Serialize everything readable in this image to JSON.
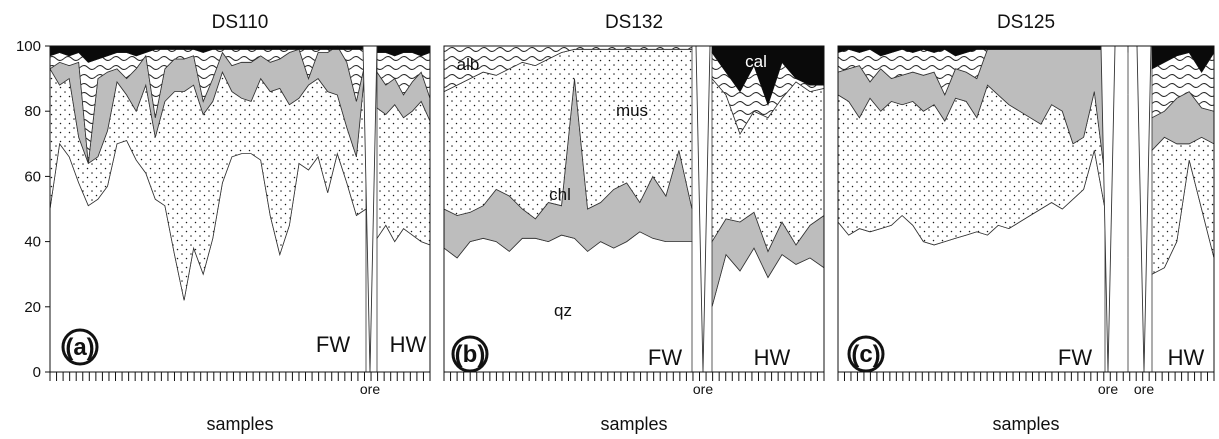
{
  "figure": {
    "xlabel": "samples",
    "y_ticks": [
      "0",
      "20",
      "40",
      "60",
      "80",
      "100"
    ]
  },
  "chart_data": [
    {
      "type": "area",
      "stacked": true,
      "title": "DS110",
      "panel_label": "(a)",
      "xlabel": "samples",
      "ylim": [
        0,
        100
      ],
      "y_ticks": [
        0,
        20,
        40,
        60,
        80,
        100
      ],
      "zone_labels": [
        "FW",
        "HW"
      ],
      "ore_label": "ore",
      "mineral_labels": [],
      "segments": [
        {
          "zone": "FW",
          "boundaries": [
            {
              "name": "qz",
              "values": [
                50,
                70,
                66,
                58,
                51,
                53,
                57,
                70,
                71,
                65,
                61,
                53,
                51,
                36,
                22,
                38,
                30,
                41,
                58,
                66,
                67,
                67,
                65,
                48,
                36,
                45,
                64,
                62,
                66,
                55,
                67,
                58,
                48,
                50
              ]
            },
            {
              "name": "mus",
              "values": [
                93,
                88,
                90,
                72,
                64,
                66,
                74,
                89,
                85,
                80,
                88,
                72,
                83,
                86,
                86,
                88,
                79,
                83,
                92,
                86,
                84,
                83,
                90,
                86,
                87,
                82,
                84,
                88,
                90,
                86,
                85,
                75,
                66,
                96
              ]
            },
            {
              "name": "chl",
              "values": [
                93,
                95,
                94,
                95,
                64,
                90,
                92,
                93,
                90,
                93,
                97,
                78,
                93,
                96,
                96,
                97,
                83,
                90,
                98,
                94,
                95,
                95,
                97,
                95,
                96,
                98,
                99,
                90,
                98,
                98,
                100,
                95,
                83,
                96
              ]
            },
            {
              "name": "cal",
              "values": [
                97,
                98,
                97,
                98,
                95,
                96,
                97,
                98,
                98,
                97,
                98,
                99,
                99,
                99,
                99,
                99,
                98,
                99,
                99,
                99,
                99,
                99,
                99,
                99,
                99,
                99,
                99,
                99,
                99,
                99,
                99,
                99,
                99,
                99
              ]
            }
          ]
        },
        {
          "zone": "HW",
          "boundaries": [
            {
              "name": "qz",
              "values": [
                41,
                45,
                40,
                44,
                42,
                40,
                39
              ]
            },
            {
              "name": "mus",
              "values": [
                81,
                79,
                82,
                78,
                80,
                83,
                77
              ]
            },
            {
              "name": "chl",
              "values": [
                92,
                88,
                90,
                85,
                89,
                92,
                84
              ]
            },
            {
              "name": "cal",
              "values": [
                98,
                98,
                97,
                98,
                98,
                97,
                98
              ]
            }
          ]
        }
      ]
    },
    {
      "type": "area",
      "stacked": true,
      "title": "DS132",
      "panel_label": "(b)",
      "xlabel": "samples",
      "ylim": [
        0,
        100
      ],
      "y_ticks": [
        0,
        20,
        40,
        60,
        80,
        100
      ],
      "zone_labels": [
        "FW",
        "HW"
      ],
      "ore_label": "ore",
      "mineral_labels": [
        "alb",
        "mus",
        "chl",
        "qz",
        "cal"
      ],
      "segments": [
        {
          "zone": "FW",
          "boundaries": [
            {
              "name": "qz",
              "values": [
                38,
                35,
                40,
                41,
                40,
                37,
                41,
                41,
                40,
                42,
                41,
                37,
                40,
                38,
                40,
                43,
                41,
                40,
                40,
                40
              ]
            },
            {
              "name": "mus",
              "values": [
                50,
                48,
                49,
                51,
                56,
                54,
                50,
                47,
                52,
                51,
                90,
                50,
                52,
                56,
                58,
                52,
                60,
                54,
                68,
                50
              ]
            },
            {
              "name": "alb",
              "values": [
                86,
                88,
                90,
                92,
                91,
                93,
                95,
                94,
                96,
                98,
                99,
                99,
                99,
                99,
                99,
                99,
                99,
                99,
                99,
                99
              ]
            },
            {
              "name": "top",
              "values": [
                100,
                100,
                100,
                100,
                100,
                100,
                100,
                100,
                100,
                100,
                100,
                100,
                100,
                100,
                100,
                100,
                100,
                100,
                100,
                100
              ]
            }
          ]
        },
        {
          "zone": "HW",
          "boundaries": [
            {
              "name": "qz",
              "values": [
                20,
                36,
                31,
                38,
                29,
                36,
                33,
                35,
                32
              ]
            },
            {
              "name": "mus",
              "values": [
                40,
                47,
                46,
                49,
                37,
                46,
                39,
                45,
                48
              ]
            },
            {
              "name": "chl",
              "values": [
                90,
                85,
                73,
                80,
                78,
                84,
                89,
                86,
                87
              ]
            },
            {
              "name": "cal",
              "values": [
                98,
                92,
                86,
                94,
                82,
                95,
                90,
                88,
                88
              ]
            }
          ]
        }
      ]
    },
    {
      "type": "area",
      "stacked": true,
      "title": "DS125",
      "panel_label": "(c)",
      "xlabel": "samples",
      "ylim": [
        0,
        100
      ],
      "y_ticks": [
        0,
        20,
        40,
        60,
        80,
        100
      ],
      "zone_labels": [
        "FW",
        "HW"
      ],
      "ore_label": "ore",
      "mineral_labels": [],
      "segments": [
        {
          "zone": "FW",
          "boundaries": [
            {
              "name": "qz",
              "values": [
                46,
                42,
                44,
                43,
                44,
                45,
                48,
                45,
                40,
                39,
                40,
                41,
                42,
                43,
                42,
                45,
                44,
                46,
                48,
                50,
                52,
                50,
                53,
                56,
                68,
                50
              ]
            },
            {
              "name": "mus",
              "values": [
                85,
                83,
                78,
                84,
                80,
                83,
                82,
                83,
                80,
                82,
                77,
                84,
                83,
                78,
                88,
                85,
                82,
                80,
                78,
                76,
                82,
                80,
                70,
                72,
                86,
                60
              ]
            },
            {
              "name": "chl",
              "values": [
                92,
                93,
                94,
                89,
                93,
                90,
                91,
                92,
                91,
                92,
                85,
                93,
                92,
                90,
                99,
                99,
                99,
                99,
                99,
                99,
                99,
                99,
                99,
                99,
                99,
                99
              ]
            },
            {
              "name": "cal",
              "values": [
                98,
                99,
                98,
                99,
                97,
                98,
                99,
                98,
                99,
                98,
                99,
                97,
                98,
                99,
                99,
                99,
                99,
                99,
                99,
                99,
                99,
                99,
                99,
                99,
                99,
                99
              ]
            }
          ]
        },
        {
          "zone": "mid",
          "boundaries": [
            {
              "name": "qz",
              "values": [
                35
              ]
            },
            {
              "name": "mus",
              "values": [
                85
              ]
            },
            {
              "name": "chl",
              "values": [
                96
              ]
            },
            {
              "name": "cal",
              "values": [
                98
              ]
            }
          ]
        },
        {
          "zone": "HW",
          "boundaries": [
            {
              "name": "qz",
              "values": [
                30,
                32,
                40,
                65,
                50,
                35
              ]
            },
            {
              "name": "mus",
              "values": [
                68,
                72,
                70,
                70,
                72,
                70
              ]
            },
            {
              "name": "chl",
              "values": [
                78,
                80,
                84,
                86,
                81,
                80
              ]
            },
            {
              "name": "cal",
              "values": [
                93,
                95,
                97,
                98,
                92,
                98
              ]
            }
          ]
        }
      ]
    }
  ]
}
